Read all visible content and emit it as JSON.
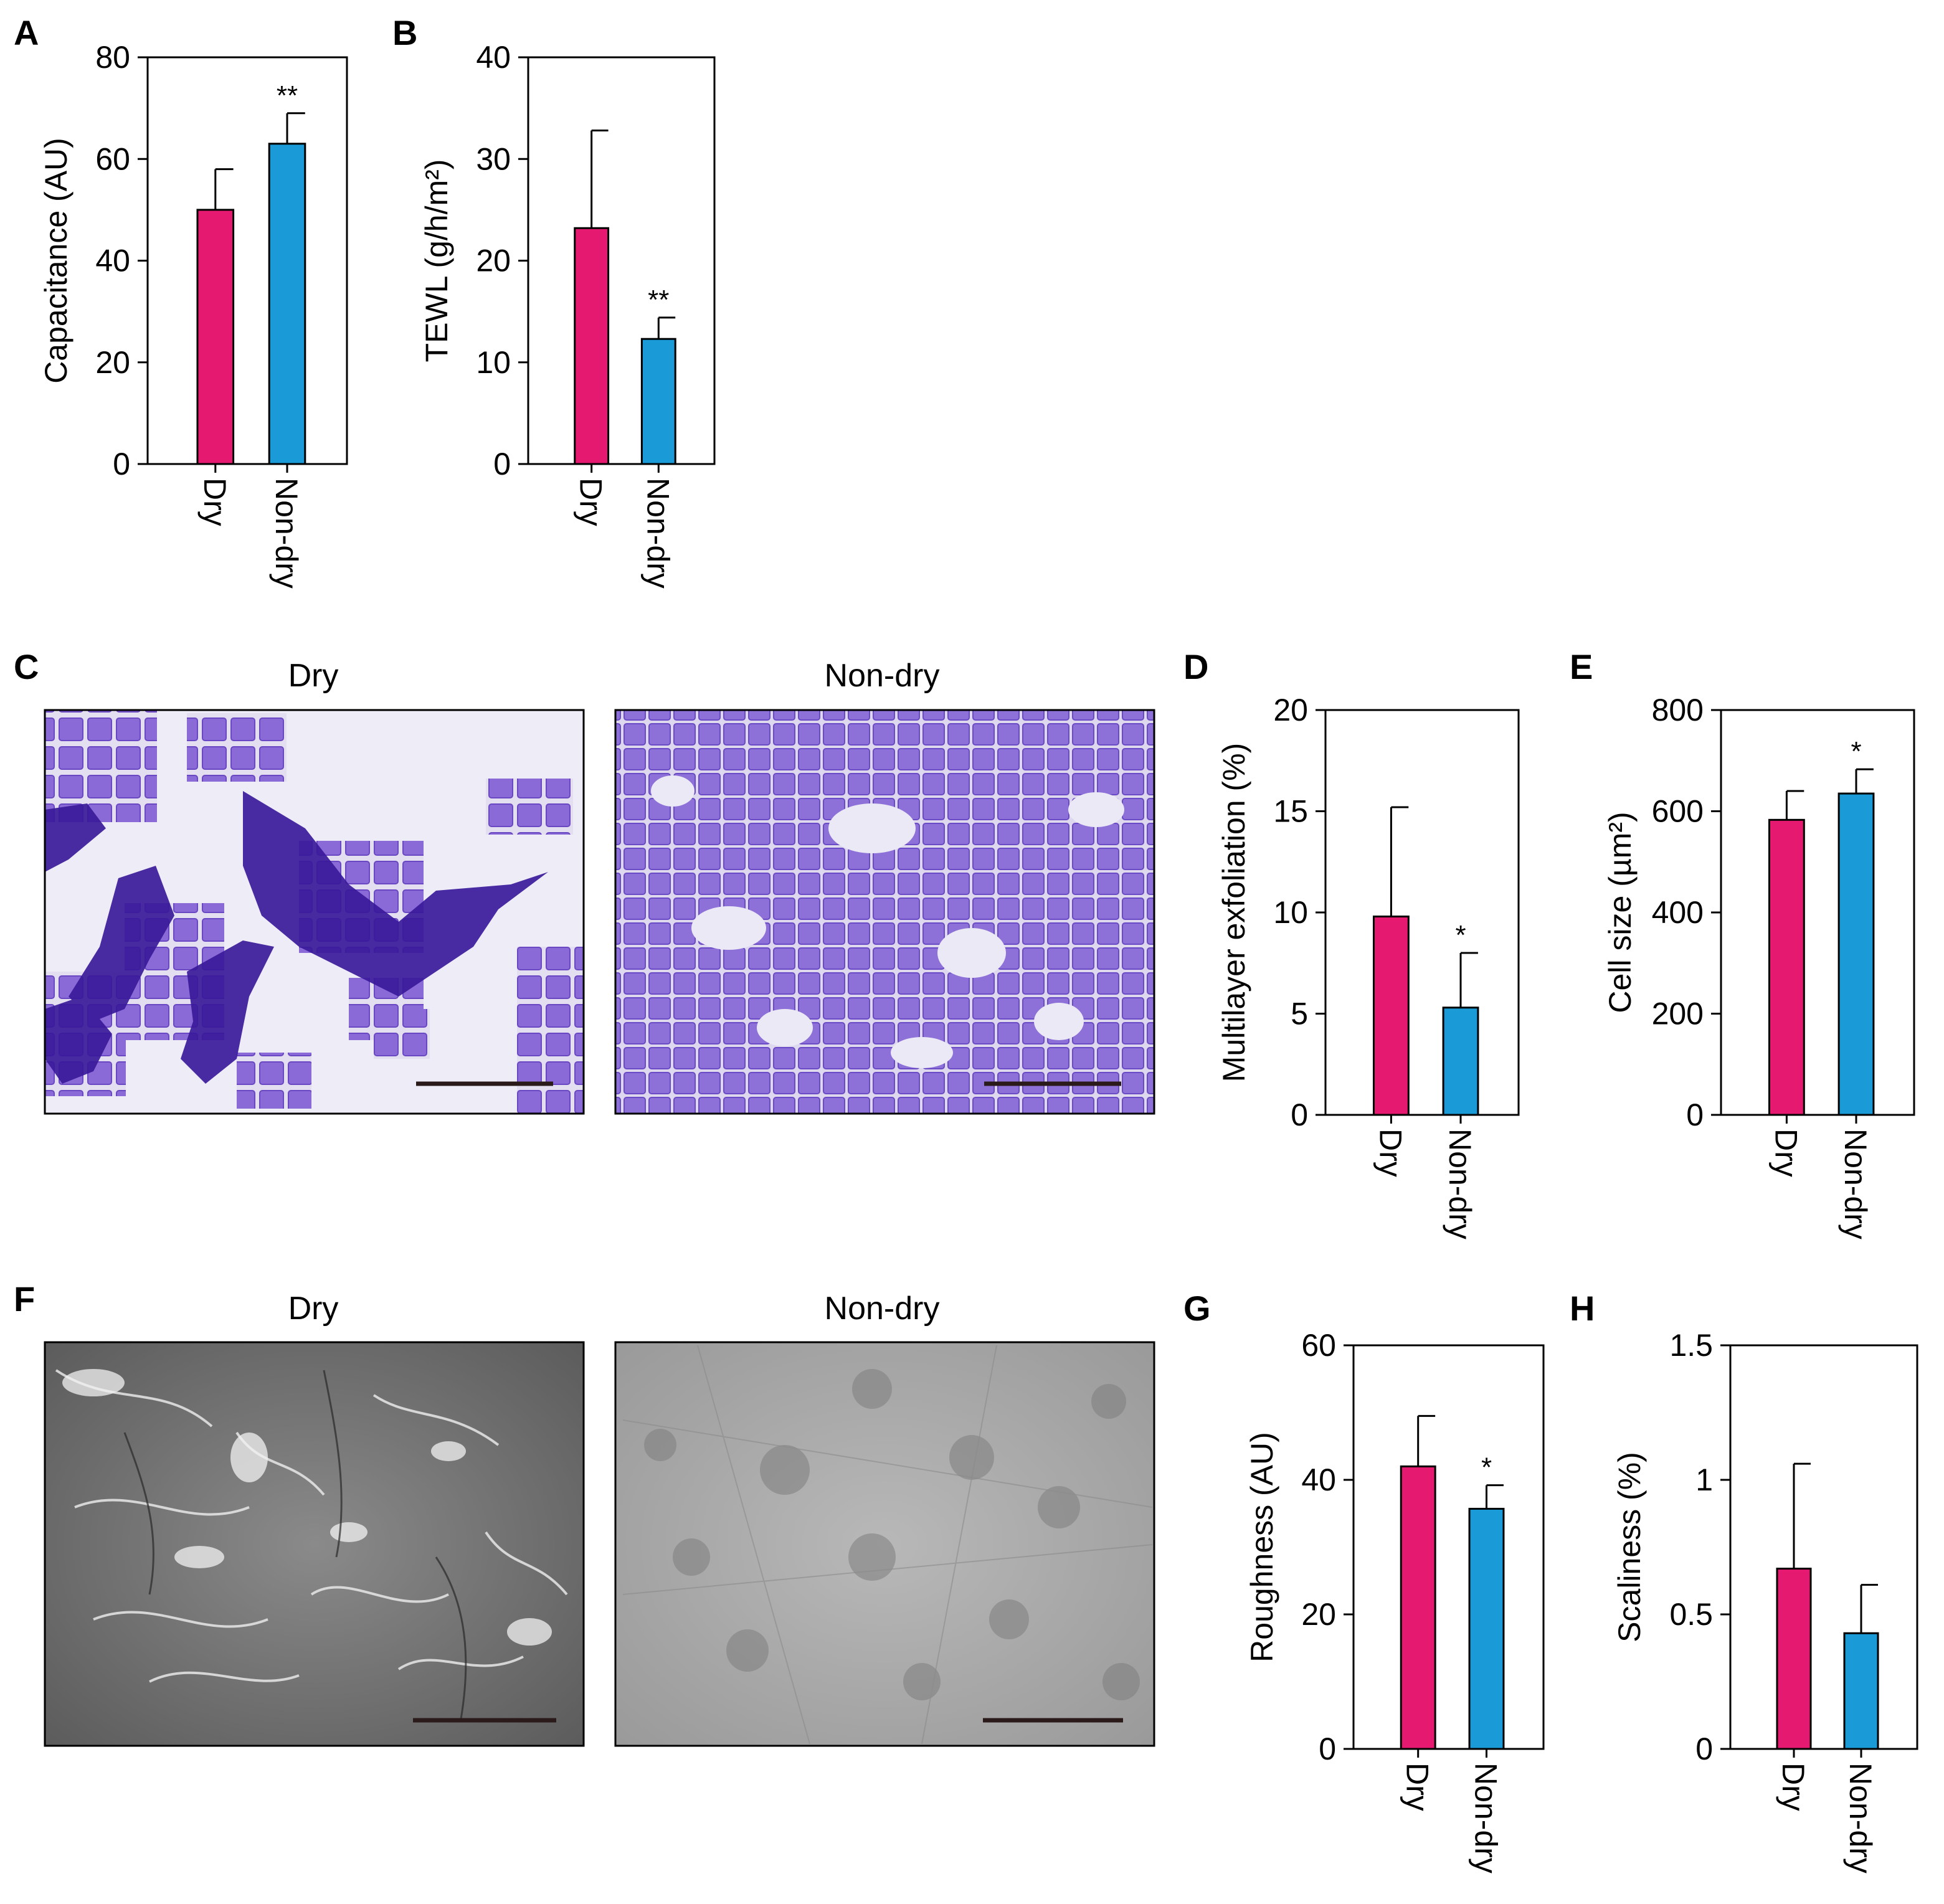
{
  "colors": {
    "dry": "#e5196f",
    "non_dry": "#1a9ad7"
  },
  "panels": [
    {
      "letter": "A"
    },
    {
      "letter": "B"
    },
    {
      "letter": "C"
    },
    {
      "letter": "D"
    },
    {
      "letter": "E"
    },
    {
      "letter": "F"
    },
    {
      "letter": "G"
    },
    {
      "letter": "H"
    }
  ],
  "image_titles": {
    "c_dry": "Dry",
    "c_non_dry": "Non-dry",
    "f_dry": "Dry",
    "f_non_dry": "Non-dry"
  },
  "chart_data": [
    {
      "id": "A",
      "type": "bar",
      "title": "",
      "categories": [
        "Dry",
        "Non-dry"
      ],
      "values": [
        50,
        63
      ],
      "error": [
        8,
        6
      ],
      "significance": [
        "",
        "**"
      ],
      "ylabel": "Capacitance (AU)",
      "ylim": [
        0,
        80
      ],
      "yticks": [
        "0",
        "20",
        "40",
        "60",
        "80"
      ],
      "ytick_values": [
        0,
        20,
        40,
        60,
        80
      ]
    },
    {
      "id": "B",
      "type": "bar",
      "title": "",
      "categories": [
        "Dry",
        "Non-dry"
      ],
      "values": [
        23.2,
        12.3
      ],
      "error": [
        9.6,
        2.1
      ],
      "significance": [
        "",
        "**"
      ],
      "ylabel": "TEWL (g/h/m²)",
      "ylim": [
        0,
        40
      ],
      "yticks": [
        "0",
        "10",
        "20",
        "30",
        "40"
      ],
      "ytick_values": [
        0,
        10,
        20,
        30,
        40
      ]
    },
    {
      "id": "D",
      "type": "bar",
      "title": "",
      "categories": [
        "Dry",
        "Non-dry"
      ],
      "values": [
        9.8,
        5.3
      ],
      "error": [
        5.4,
        2.7
      ],
      "significance": [
        "",
        "*"
      ],
      "ylabel": "Multilayer exfoliation (%)",
      "ylim": [
        0,
        20
      ],
      "yticks": [
        "0",
        "5",
        "10",
        "15",
        "20"
      ],
      "ytick_values": [
        0,
        5,
        10,
        15,
        20
      ]
    },
    {
      "id": "E",
      "type": "bar",
      "title": "",
      "categories": [
        "Dry",
        "Non-dry"
      ],
      "values": [
        583,
        635
      ],
      "error": [
        57,
        48
      ],
      "significance": [
        "",
        "*"
      ],
      "ylabel": "Cell size (µm²)",
      "ylim": [
        0,
        800
      ],
      "yticks": [
        "0",
        "200",
        "400",
        "600",
        "800"
      ],
      "ytick_values": [
        0,
        200,
        400,
        600,
        800
      ]
    },
    {
      "id": "G",
      "type": "bar",
      "title": "",
      "categories": [
        "Dry",
        "Non-dry"
      ],
      "values": [
        42,
        35.7
      ],
      "error": [
        7.5,
        3.5
      ],
      "significance": [
        "",
        "*"
      ],
      "ylabel": "Roughness (AU)",
      "ylim": [
        0,
        60
      ],
      "yticks": [
        "0",
        "20",
        "40",
        "60"
      ],
      "ytick_values": [
        0,
        20,
        40,
        60
      ]
    },
    {
      "id": "H",
      "type": "bar",
      "title": "",
      "categories": [
        "Dry",
        "Non-dry"
      ],
      "values": [
        0.67,
        0.43
      ],
      "error": [
        0.39,
        0.18
      ],
      "significance": [
        "",
        ""
      ],
      "ylabel": "Scaliness (%)",
      "ylim": [
        0,
        1.5
      ],
      "yticks": [
        "0",
        "0.5",
        "1",
        "1.5"
      ],
      "ytick_values": [
        0,
        0.5,
        1,
        1.5
      ]
    }
  ]
}
